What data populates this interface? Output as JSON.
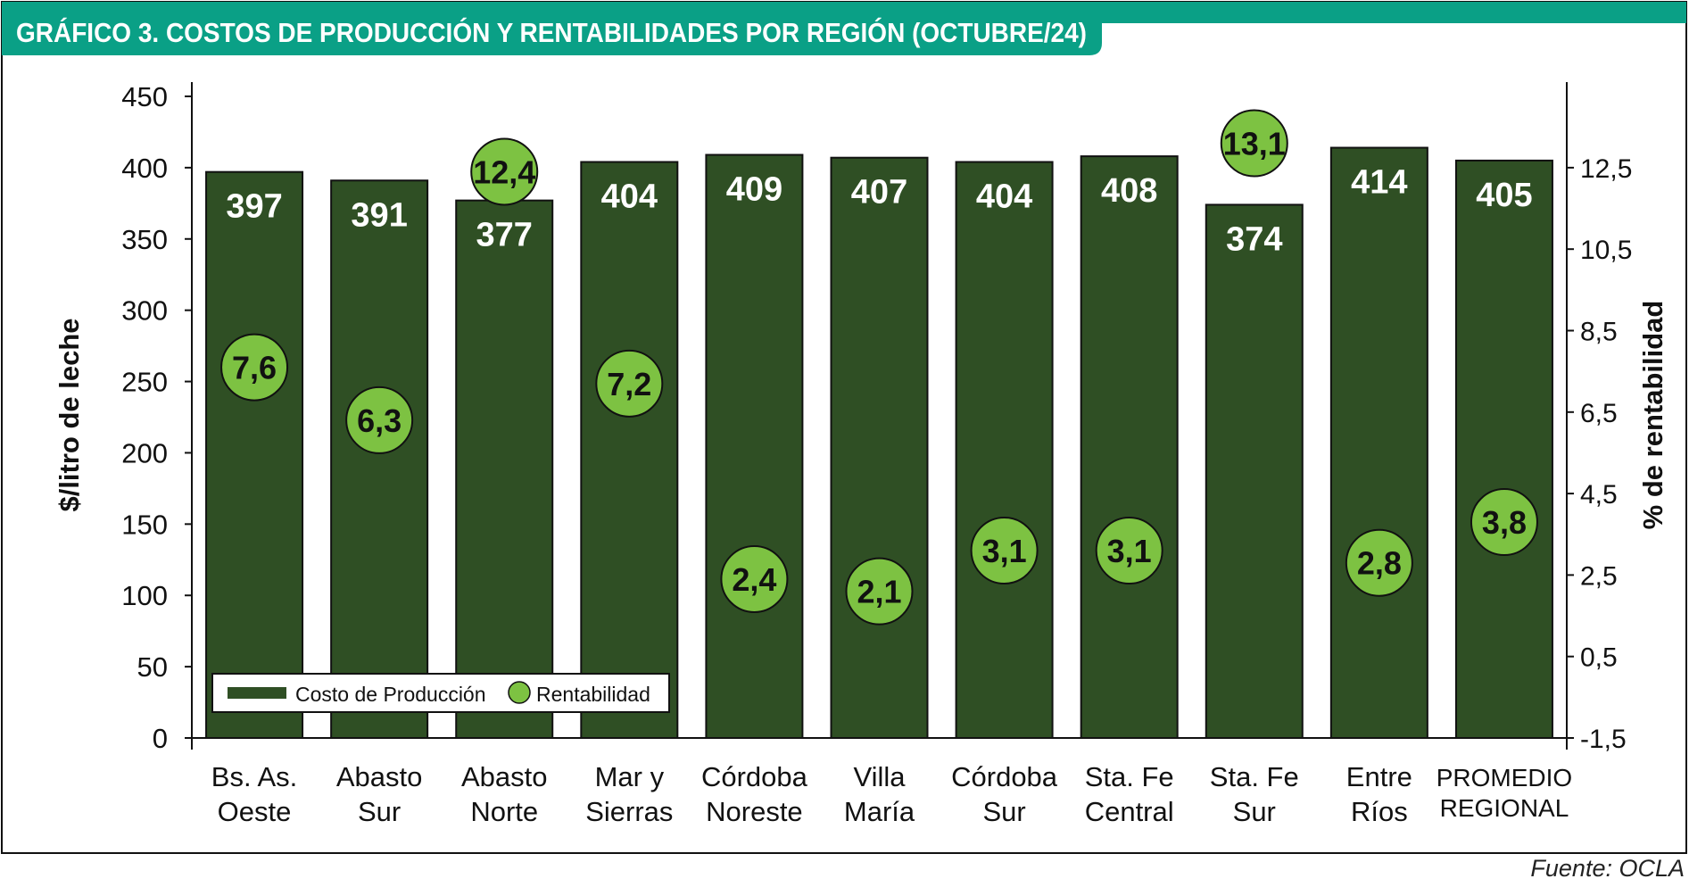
{
  "chart_data": {
    "type": "bar",
    "title": "GRÁFICO 3. COSTOS DE PRODUCCIÓN Y RENTABILIDADES POR REGIÓN (OCTUBRE/24)",
    "categories": [
      [
        "Bs. As.",
        "Oeste"
      ],
      [
        "Abasto",
        "Sur"
      ],
      [
        "Abasto",
        "Norte"
      ],
      [
        "Mar y",
        "Sierras"
      ],
      [
        "Córdoba",
        "Noreste"
      ],
      [
        "Villa",
        "María"
      ],
      [
        "Córdoba",
        "Sur"
      ],
      [
        "Sta. Fe",
        "Central"
      ],
      [
        "Sta. Fe",
        "Sur"
      ],
      [
        "Entre",
        "Ríos"
      ],
      [
        "PROMEDIO",
        "REGIONAL"
      ]
    ],
    "series": [
      {
        "name": "Costo de Producción",
        "axis": "left",
        "values": [
          397,
          391,
          377,
          404,
          409,
          407,
          404,
          408,
          374,
          414,
          405
        ],
        "labels": [
          "397",
          "391",
          "377",
          "404",
          "409",
          "407",
          "404",
          "408",
          "374",
          "414",
          "405"
        ]
      },
      {
        "name": "Rentabilidad",
        "axis": "right",
        "values": [
          7.6,
          6.3,
          12.4,
          7.2,
          2.4,
          2.1,
          3.1,
          3.1,
          13.1,
          2.8,
          3.8
        ],
        "labels": [
          "7,6",
          "6,3",
          "12,4",
          "7,2",
          "2,4",
          "2,1",
          "3,1",
          "3,1",
          "13,1",
          "2,8",
          "3,8"
        ]
      }
    ],
    "ylabel": "$/litro de leche",
    "ylim": [
      0,
      450
    ],
    "yticks": [
      "0",
      "50",
      "100",
      "150",
      "200",
      "250",
      "300",
      "350",
      "400",
      "450"
    ],
    "y2label": "% de rentabilidad",
    "y2lim": [
      -1.5,
      14.25
    ],
    "y2ticks": [
      -1.5,
      0.5,
      2.5,
      4.5,
      6.5,
      8.5,
      10.5,
      12.5
    ],
    "y2tick_labels": [
      "-1,5",
      "0,5",
      "2,5",
      "4,5",
      "6,5",
      "8,5",
      "10,5",
      "12,5"
    ],
    "legend_position": "bottom-left",
    "source": "Fuente: OCLA",
    "colors": {
      "bar": "#2f4f24",
      "bubble": "#7dc242",
      "header": "#0aa086",
      "header_text": "#ffffff"
    }
  }
}
